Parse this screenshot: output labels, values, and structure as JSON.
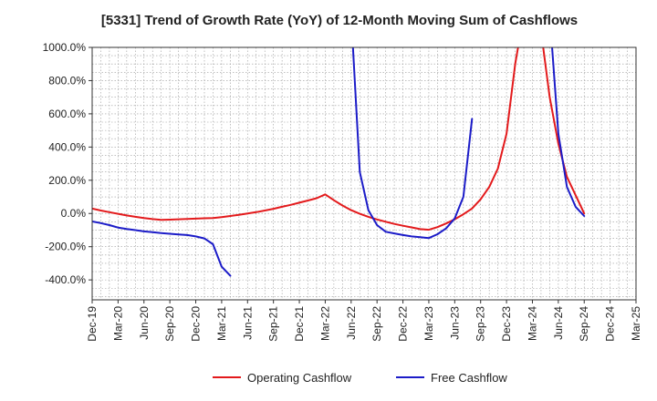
{
  "chart_data": {
    "type": "line",
    "title": "[5331]  Trend of Growth Rate (YoY) of 12-Month Moving Sum of Cashflows",
    "xlabel": "",
    "ylabel": "",
    "x_ticks": [
      "Dec-19",
      "Mar-20",
      "Jun-20",
      "Sep-20",
      "Dec-20",
      "Mar-21",
      "Jun-21",
      "Sep-21",
      "Dec-21",
      "Mar-22",
      "Jun-22",
      "Sep-22",
      "Dec-22",
      "Mar-23",
      "Jun-23",
      "Sep-23",
      "Dec-23",
      "Mar-24",
      "Jun-24",
      "Sep-24",
      "Dec-24",
      "Mar-25"
    ],
    "y_ticks": [
      "1000.0%",
      "800.0%",
      "600.0%",
      "400.0%",
      "200.0%",
      "0.0%",
      "-200.0%",
      "-400.0%"
    ],
    "ylim": [
      -520,
      1000
    ],
    "grid": true,
    "legend_position": "bottom",
    "series": [
      {
        "name": "Operating Cashflow",
        "color": "#e31a1c",
        "x": [
          "2019-12",
          "2020-01",
          "2020-02",
          "2020-03",
          "2020-04",
          "2020-05",
          "2020-06",
          "2020-07",
          "2020-08",
          "2020-09",
          "2020-10",
          "2020-11",
          "2020-12",
          "2021-01",
          "2021-02",
          "2021-03",
          "2021-04",
          "2021-05",
          "2021-06",
          "2021-07",
          "2021-08",
          "2021-09",
          "2021-10",
          "2021-11",
          "2021-12",
          "2022-01",
          "2022-02",
          "2022-03",
          "2022-04",
          "2022-05",
          "2022-06",
          "2022-07",
          "2022-08",
          "2022-09",
          "2022-10",
          "2022-11",
          "2022-12",
          "2023-01",
          "2023-02",
          "2023-03",
          "2023-04",
          "2023-05",
          "2023-06",
          "2023-07",
          "2023-08",
          "2023-09",
          "2023-10",
          "2023-11",
          "2023-12",
          "2024-01",
          "2024-02",
          "2024-03",
          "2024-04",
          "2024-05",
          "2024-06",
          "2024-07",
          "2024-08",
          "2024-09"
        ],
        "values": [
          30,
          18,
          8,
          -2,
          -12,
          -20,
          -28,
          -34,
          -38,
          -37,
          -35,
          -33,
          -31,
          -29,
          -27,
          -22,
          -15,
          -8,
          0,
          8,
          18,
          28,
          40,
          52,
          65,
          78,
          92,
          115,
          80,
          48,
          20,
          -2,
          -20,
          -36,
          -50,
          -63,
          -74,
          -84,
          -94,
          -98,
          -82,
          -60,
          -35,
          -5,
          30,
          85,
          160,
          270,
          480,
          900,
          1200,
          1300,
          1100,
          700,
          420,
          220,
          110,
          0
        ]
      },
      {
        "name": "Free Cashflow",
        "color": "#1c1cc8",
        "x": [
          [
            "2019-12",
            "2020-01",
            "2020-02",
            "2020-03",
            "2020-04",
            "2020-05",
            "2020-06",
            "2020-07",
            "2020-08",
            "2020-09",
            "2020-10",
            "2020-11",
            "2020-12",
            "2021-01",
            "2021-02",
            "2021-03",
            "2021-04"
          ],
          [
            "2022-06",
            "2022-07",
            "2022-08",
            "2022-09",
            "2022-10",
            "2022-11",
            "2022-12",
            "2023-01",
            "2023-02",
            "2023-03",
            "2023-04",
            "2023-05",
            "2023-06",
            "2023-07",
            "2023-08"
          ],
          [
            "2024-05",
            "2024-06",
            "2024-07",
            "2024-08",
            "2024-09"
          ]
        ],
        "values": [
          [
            -48,
            -58,
            -70,
            -85,
            -93,
            -100,
            -108,
            -113,
            -118,
            -122,
            -126,
            -130,
            -138,
            -150,
            -185,
            -320,
            -375
          ],
          [
            1200,
            250,
            20,
            -70,
            -110,
            -120,
            -130,
            -138,
            -143,
            -148,
            -125,
            -90,
            -30,
            100,
            570
          ],
          [
            1200,
            480,
            160,
            40,
            -15
          ]
        ]
      }
    ]
  }
}
